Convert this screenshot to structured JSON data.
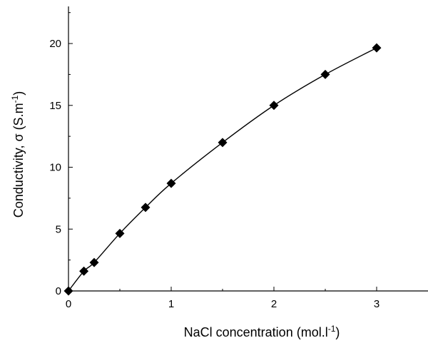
{
  "chart_data": {
    "type": "scatter",
    "title": "",
    "xlabel": "NaCl concentration (mol.l",
    "xlabel_sup": "-1",
    "xlabel_end": ")",
    "ylabel": "Conductivity, σ (S.m",
    "ylabel_sup": "-1",
    "ylabel_end": ")",
    "xlim": [
      0,
      3.5
    ],
    "ylim": [
      0,
      23
    ],
    "xticks": [
      0,
      1,
      2,
      3
    ],
    "yticks": [
      0,
      5,
      10,
      15,
      20
    ],
    "grid": false,
    "series": [
      {
        "x": [
          0,
          0.15,
          0.25,
          0.5,
          0.75,
          1.0,
          1.5,
          2.0,
          2.5,
          3.0
        ],
        "y": [
          0,
          1.6,
          2.3,
          4.65,
          6.75,
          8.7,
          12.0,
          15.0,
          17.5,
          19.65
        ],
        "marker": "diamond",
        "line": "smooth",
        "color": "#000000"
      }
    ]
  }
}
